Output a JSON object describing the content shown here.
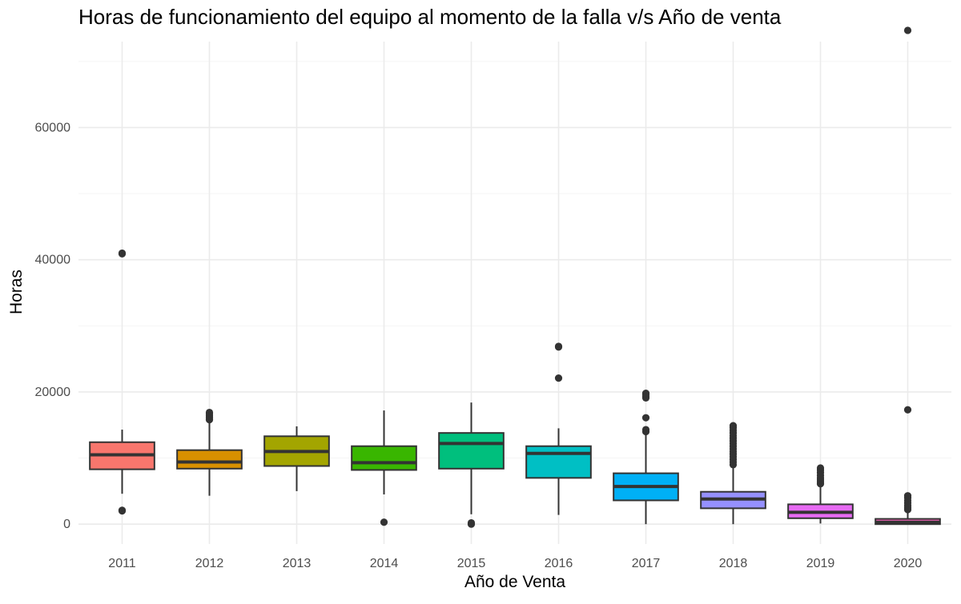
{
  "chart_data": {
    "type": "boxplot",
    "title": "Horas de funcionamiento del equipo al momento de la falla v/s Año de venta",
    "xlabel": "Año de Venta",
    "ylabel": "Horas",
    "ylim": [
      -3000,
      73000
    ],
    "yticks": [
      0,
      20000,
      40000,
      60000
    ],
    "ytick_labels": [
      "0",
      "20000",
      "40000",
      "60000"
    ],
    "grid": true,
    "legend": "none",
    "categories": [
      "2011",
      "2012",
      "2013",
      "2014",
      "2015",
      "2016",
      "2017",
      "2018",
      "2019",
      "2020"
    ],
    "boxes": [
      {
        "category": "2011",
        "color": "#F8766D",
        "whisker_low": 4600,
        "q1": 8300,
        "median": 10500,
        "q3": 12400,
        "whisker_high": 14300,
        "outliers": [
          2000,
          2100,
          40900,
          41000
        ]
      },
      {
        "category": "2012",
        "color": "#D89000",
        "whisker_low": 4300,
        "q1": 8400,
        "median": 9400,
        "q3": 11200,
        "whisker_high": 15500,
        "outliers": [
          15800,
          16100,
          16400,
          16700,
          16900
        ]
      },
      {
        "category": "2013",
        "color": "#A3A500",
        "whisker_low": 5000,
        "q1": 8800,
        "median": 11000,
        "q3": 13300,
        "whisker_high": 14800,
        "outliers": []
      },
      {
        "category": "2014",
        "color": "#39B600",
        "whisker_low": 4500,
        "q1": 8200,
        "median": 9300,
        "q3": 11800,
        "whisker_high": 17200,
        "outliers": [
          300
        ]
      },
      {
        "category": "2015",
        "color": "#00BF7D",
        "whisker_low": 1500,
        "q1": 8400,
        "median": 12200,
        "q3": 13800,
        "whisker_high": 18400,
        "outliers": [
          0,
          100,
          200
        ]
      },
      {
        "category": "2016",
        "color": "#00BFC4",
        "whisker_low": 1400,
        "q1": 7000,
        "median": 10700,
        "q3": 11800,
        "whisker_high": 14500,
        "outliers": [
          22100,
          26800,
          26900
        ]
      },
      {
        "category": "2017",
        "color": "#00B0F6",
        "whisker_low": 0,
        "q1": 3600,
        "median": 5700,
        "q3": 7700,
        "whisker_high": 13500,
        "outliers": [
          14000,
          14300,
          16100,
          19100,
          19300,
          19600,
          19800
        ]
      },
      {
        "category": "2018",
        "color": "#9590FF",
        "whisker_low": 0,
        "q1": 2400,
        "median": 3800,
        "q3": 4900,
        "whisker_high": 8700,
        "outliers": [
          9000,
          9400,
          9800,
          10200,
          10600,
          11000,
          11400,
          11800,
          12200,
          12600,
          13000,
          13400,
          13800,
          14200,
          14600,
          14900
        ]
      },
      {
        "category": "2019",
        "color": "#E76BF3",
        "whisker_low": 100,
        "q1": 900,
        "median": 1800,
        "q3": 3000,
        "whisker_high": 5800,
        "outliers": [
          6100,
          6400,
          6700,
          7000,
          7400,
          7800,
          8200,
          8500
        ]
      },
      {
        "category": "2020",
        "color": "#FF62BC",
        "whisker_low": 0,
        "q1": 0,
        "median": 300,
        "q3": 800,
        "whisker_high": 1900,
        "outliers": [
          2200,
          2500,
          2800,
          3200,
          3600,
          4000,
          4300,
          17300,
          74700
        ]
      }
    ]
  }
}
